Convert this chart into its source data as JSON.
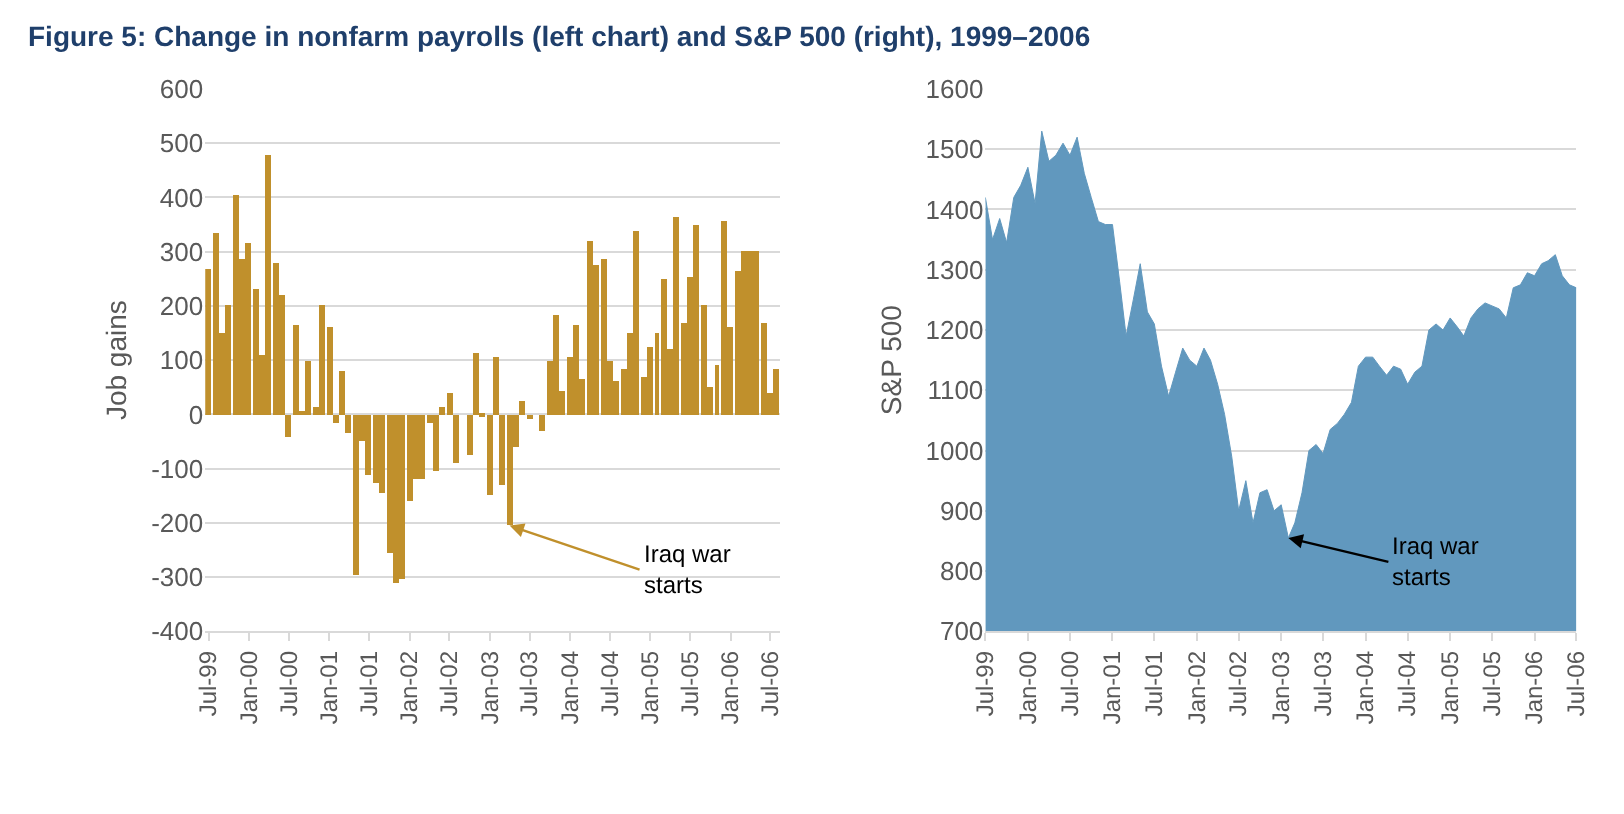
{
  "chart_data": [
    {
      "type": "bar",
      "title": "Figure 5: Change in nonfarm payrolls (left chart) and S&P 500 (right), 1999–2006",
      "ylabel": "Job gains",
      "color": "#c0902c",
      "x": [
        "1999-07",
        "1999-08",
        "1999-09",
        "1999-10",
        "1999-11",
        "1999-12",
        "2000-01",
        "2000-02",
        "2000-03",
        "2000-04",
        "2000-05",
        "2000-06",
        "2000-07",
        "2000-08",
        "2000-09",
        "2000-10",
        "2000-11",
        "2000-12",
        "2001-01",
        "2001-02",
        "2001-03",
        "2001-04",
        "2001-05",
        "2001-06",
        "2001-07",
        "2001-08",
        "2001-09",
        "2001-10",
        "2001-11",
        "2001-12",
        "2002-01",
        "2002-02",
        "2002-03",
        "2002-04",
        "2002-05",
        "2002-06",
        "2002-07",
        "2002-08",
        "2002-09",
        "2002-10",
        "2002-11",
        "2002-12",
        "2003-01",
        "2003-02",
        "2003-03",
        "2003-04",
        "2003-05",
        "2003-06",
        "2003-07",
        "2003-08",
        "2003-09",
        "2003-10",
        "2003-11",
        "2003-12",
        "2004-01",
        "2004-02",
        "2004-03",
        "2004-04",
        "2004-05",
        "2004-06",
        "2004-07",
        "2004-08",
        "2004-09",
        "2004-10",
        "2004-11",
        "2004-12",
        "2005-01",
        "2005-02",
        "2005-03",
        "2005-04",
        "2005-05",
        "2005-06",
        "2005-07",
        "2005-08",
        "2005-09",
        "2005-10",
        "2005-11",
        "2005-12",
        "2006-01",
        "2006-02",
        "2006-03",
        "2006-04",
        "2006-05",
        "2006-06",
        "2006-07",
        "2006-08"
      ],
      "values": [
        270,
        335,
        150,
        200,
        405,
        285,
        315,
        230,
        110,
        480,
        280,
        220,
        -40,
        165,
        5,
        100,
        15,
        200,
        160,
        -15,
        80,
        -35,
        -295,
        -50,
        -110,
        -125,
        -145,
        -255,
        -310,
        -305,
        -160,
        -120,
        -120,
        -15,
        -105,
        15,
        40,
        -90,
        0,
        -75,
        115,
        -5,
        -150,
        105,
        -130,
        -205,
        -60,
        25,
        -10,
        0,
        -30,
        100,
        185,
        45,
        105,
        165,
        65,
        320,
        275,
        285,
        100,
        60,
        85,
        150,
        340,
        70,
        125,
        150,
        250,
        120,
        365,
        170,
        255,
        350,
        200,
        50,
        90,
        355,
        160,
        265,
        300,
        300,
        300,
        170,
        40,
        85
      ],
      "xlim": [
        "1999-06-16",
        "2006-08-16"
      ],
      "xticks": [
        {
          "value": "1999-07",
          "label": "Jul-99"
        },
        {
          "value": "2000-01",
          "label": "Jan-00"
        },
        {
          "value": "2000-07",
          "label": "Jul-00"
        },
        {
          "value": "2001-01",
          "label": "Jan-01"
        },
        {
          "value": "2001-07",
          "label": "Jul-01"
        },
        {
          "value": "2002-01",
          "label": "Jan-02"
        },
        {
          "value": "2002-07",
          "label": "Jul-02"
        },
        {
          "value": "2003-01",
          "label": "Jan-03"
        },
        {
          "value": "2003-07",
          "label": "Jul-03"
        },
        {
          "value": "2004-01",
          "label": "Jan-04"
        },
        {
          "value": "2004-07",
          "label": "Jul-04"
        },
        {
          "value": "2005-01",
          "label": "Jan-05"
        },
        {
          "value": "2005-07",
          "label": "Jul-05"
        },
        {
          "value": "2006-01",
          "label": "Jan-06"
        },
        {
          "value": "2006-07",
          "label": "Jul-06"
        }
      ],
      "ylim": [
        -400,
        600
      ],
      "yticks": [
        -400,
        -300,
        -200,
        -100,
        0,
        100,
        200,
        300,
        400,
        500,
        600
      ],
      "grid": "y",
      "annotations": [
        {
          "text": "Iraq war\nstarts",
          "x": "2003-04",
          "y": -205
        }
      ]
    },
    {
      "type": "area",
      "ylabel": "S&P 500",
      "color": "#6198be",
      "x": [
        "1999-07",
        "1999-08",
        "1999-09",
        "1999-10",
        "1999-11",
        "1999-12",
        "2000-01",
        "2000-02",
        "2000-03",
        "2000-04",
        "2000-05",
        "2000-06",
        "2000-07",
        "2000-08",
        "2000-09",
        "2000-10",
        "2000-11",
        "2000-12",
        "2001-01",
        "2001-02",
        "2001-03",
        "2001-04",
        "2001-05",
        "2001-06",
        "2001-07",
        "2001-08",
        "2001-09",
        "2001-10",
        "2001-11",
        "2001-12",
        "2002-01",
        "2002-02",
        "2002-03",
        "2002-04",
        "2002-05",
        "2002-06",
        "2002-07",
        "2002-08",
        "2002-09",
        "2002-10",
        "2002-11",
        "2002-12",
        "2003-01",
        "2003-02",
        "2003-03",
        "2003-04",
        "2003-05",
        "2003-06",
        "2003-07",
        "2003-08",
        "2003-09",
        "2003-10",
        "2003-11",
        "2003-12",
        "2004-01",
        "2004-02",
        "2004-03",
        "2004-04",
        "2004-05",
        "2004-06",
        "2004-07",
        "2004-08",
        "2004-09",
        "2004-10",
        "2004-11",
        "2004-12",
        "2005-01",
        "2005-02",
        "2005-03",
        "2005-04",
        "2005-05",
        "2005-06",
        "2005-07",
        "2005-08",
        "2005-09",
        "2005-10",
        "2005-11",
        "2005-12",
        "2006-01",
        "2006-02",
        "2006-03",
        "2006-04",
        "2006-05",
        "2006-06",
        "2006-07"
      ],
      "values": [
        1420,
        1350,
        1385,
        1345,
        1420,
        1440,
        1470,
        1410,
        1530,
        1480,
        1490,
        1510,
        1490,
        1520,
        1460,
        1420,
        1380,
        1375,
        1375,
        1280,
        1190,
        1250,
        1310,
        1230,
        1210,
        1140,
        1090,
        1130,
        1170,
        1150,
        1140,
        1170,
        1150,
        1110,
        1060,
        990,
        900,
        950,
        880,
        930,
        935,
        900,
        910,
        855,
        880,
        930,
        1000,
        1010,
        995,
        1035,
        1045,
        1060,
        1080,
        1140,
        1155,
        1155,
        1140,
        1125,
        1140,
        1135,
        1110,
        1130,
        1140,
        1200,
        1210,
        1200,
        1220,
        1205,
        1190,
        1220,
        1235,
        1245,
        1240,
        1235,
        1220,
        1270,
        1275,
        1295,
        1290,
        1310,
        1315,
        1325,
        1290,
        1275,
        1270
      ],
      "xlim": [
        "1999-07",
        "2006-07"
      ],
      "xticks": [
        {
          "value": "1999-07",
          "label": "Jul-99"
        },
        {
          "value": "2000-01",
          "label": "Jan-00"
        },
        {
          "value": "2000-07",
          "label": "Jul-00"
        },
        {
          "value": "2001-01",
          "label": "Jan-01"
        },
        {
          "value": "2001-07",
          "label": "Jul-01"
        },
        {
          "value": "2002-01",
          "label": "Jan-02"
        },
        {
          "value": "2002-07",
          "label": "Jul-02"
        },
        {
          "value": "2003-01",
          "label": "Jan-03"
        },
        {
          "value": "2003-07",
          "label": "Jul-03"
        },
        {
          "value": "2004-01",
          "label": "Jan-04"
        },
        {
          "value": "2004-07",
          "label": "Jul-04"
        },
        {
          "value": "2005-01",
          "label": "Jan-05"
        },
        {
          "value": "2005-07",
          "label": "Jul-05"
        },
        {
          "value": "2006-01",
          "label": "Jan-06"
        },
        {
          "value": "2006-07",
          "label": "Jul-06"
        }
      ],
      "ylim": [
        700,
        1600
      ],
      "yticks": [
        700,
        800,
        900,
        1000,
        1100,
        1200,
        1300,
        1400,
        1500,
        1600
      ],
      "grid": "y",
      "annotations": [
        {
          "text": "Iraq war\nstarts",
          "x": "2003-02",
          "y": 855
        }
      ]
    }
  ]
}
